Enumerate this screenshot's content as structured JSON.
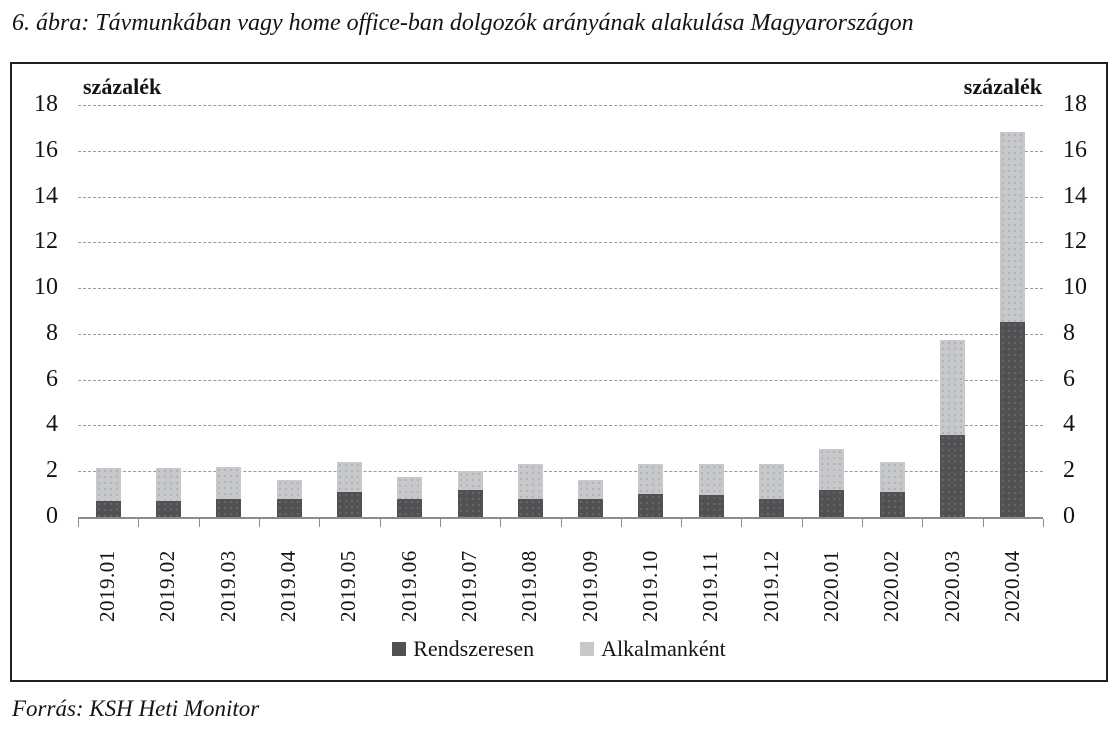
{
  "title": "6. ábra: Távmunkában vagy home office-ban dolgozók arányának alakulása Magyarországon",
  "source": "Forrás: KSH Heti Monitor",
  "chart_data": {
    "type": "bar",
    "stacked": true,
    "title": "Távmunkában vagy home office-ban dolgozók arányának alakulása Magyarországon",
    "unit_label_left": "százalék",
    "unit_label_right": "százalék",
    "categories": [
      "2019.01",
      "2019.02",
      "2019.03",
      "2019.04",
      "2019.05",
      "2019.06",
      "2019.07",
      "2019.08",
      "2019.09",
      "2019.10",
      "2019.11",
      "2019.12",
      "2020.01",
      "2020.02",
      "2020.03",
      "2020.04"
    ],
    "series": [
      {
        "name": "Rendszeresen",
        "color": "#515153",
        "values": [
          0.7,
          0.7,
          0.8,
          0.8,
          1.1,
          0.8,
          1.2,
          0.8,
          0.8,
          1.0,
          0.95,
          0.8,
          1.2,
          1.1,
          3.6,
          8.5
        ]
      },
      {
        "name": "Alkalmanként",
        "color": "#c7c8ca",
        "values": [
          1.45,
          1.45,
          1.4,
          0.8,
          1.3,
          0.95,
          0.8,
          1.5,
          0.8,
          1.3,
          1.35,
          1.5,
          1.75,
          1.3,
          4.15,
          8.3
        ]
      }
    ],
    "ylim": [
      0,
      18
    ],
    "ytick_step": 2,
    "grid": true,
    "gridline_style": "dashed",
    "legend_position": "bottom",
    "colors": {
      "regular": "#515153",
      "occasional": "#c7c8ca",
      "gridline": "#9a9aa2",
      "axis": "#8c8c8c",
      "border": "#1f1f1f",
      "text": "#141414"
    }
  }
}
